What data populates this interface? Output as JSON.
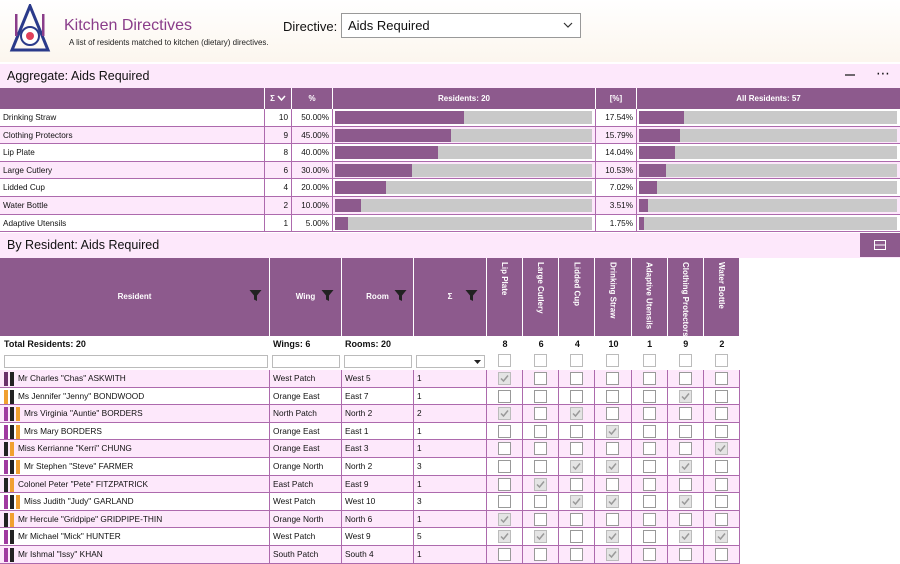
{
  "app": {
    "title": "Kitchen Directives",
    "subtitle": "A list of residents matched to kitchen (dietary) directives."
  },
  "directive": {
    "label": "Directive:",
    "value": "Aids Required"
  },
  "aggregate": {
    "title": "Aggregate: Aids Required",
    "headers": {
      "sum": "Σ",
      "pct": "%",
      "residents": "Residents: 20",
      "pct_all": "[%]",
      "all_residents": "All Residents: 57"
    },
    "rows": [
      {
        "name": "Drinking Straw",
        "n": "10",
        "pct": "50.00%",
        "frac": 0.5,
        "pct_all": "17.54%",
        "frac_all": 0.1754
      },
      {
        "name": "Clothing Protectors",
        "n": "9",
        "pct": "45.00%",
        "frac": 0.45,
        "pct_all": "15.79%",
        "frac_all": 0.1579
      },
      {
        "name": "Lip Plate",
        "n": "8",
        "pct": "40.00%",
        "frac": 0.4,
        "pct_all": "14.04%",
        "frac_all": 0.1404
      },
      {
        "name": "Large Cutlery",
        "n": "6",
        "pct": "30.00%",
        "frac": 0.3,
        "pct_all": "10.53%",
        "frac_all": 0.1053
      },
      {
        "name": "Lidded Cup",
        "n": "4",
        "pct": "20.00%",
        "frac": 0.2,
        "pct_all": "7.02%",
        "frac_all": 0.0702
      },
      {
        "name": "Water Bottle",
        "n": "2",
        "pct": "10.00%",
        "frac": 0.1,
        "pct_all": "3.51%",
        "frac_all": 0.0351
      },
      {
        "name": "Adaptive Utensils",
        "n": "1",
        "pct": "5.00%",
        "frac": 0.05,
        "pct_all": "1.75%",
        "frac_all": 0.0175
      }
    ]
  },
  "by_resident": {
    "title": "By Resident: Aids Required",
    "headers": {
      "resident": "Resident",
      "wing": "Wing",
      "room": "Room",
      "sum": "Σ"
    },
    "aid_columns": [
      "Lip Plate",
      "Large Cutlery",
      "Lidded Cup",
      "Drinking Straw",
      "Adaptive Utensils",
      "Clothing Protectors",
      "Water Bottle"
    ],
    "totals": {
      "residents": "Total Residents: 20",
      "wings": "Wings: 6",
      "rooms": "Rooms: 20",
      "aid_counts": [
        "8",
        "6",
        "4",
        "10",
        "1",
        "9",
        "2"
      ]
    },
    "rows": [
      {
        "name": "Mr Charles \"Chas\" ASKWITH",
        "wing": "West Patch",
        "room": "West  5",
        "sum": "1",
        "tags": [
          "#6a2f6a",
          "#222"
        ],
        "aids": [
          1,
          0,
          0,
          0,
          0,
          0,
          0
        ]
      },
      {
        "name": "Ms Jennifer \"Jenny\" BONDWOOD",
        "wing": "Orange East",
        "room": "East  7",
        "sum": "1",
        "tags": [
          "#f0a030",
          "#222"
        ],
        "aids": [
          0,
          0,
          0,
          0,
          0,
          1,
          0
        ]
      },
      {
        "name": "Mrs Virginia \"Auntie\" BORDERS",
        "wing": "North Patch",
        "room": "North  2",
        "sum": "2",
        "tags": [
          "#a03aa0",
          "#222",
          "#f0a030"
        ],
        "aids": [
          1,
          0,
          1,
          0,
          0,
          0,
          0
        ]
      },
      {
        "name": "Mrs Mary BORDERS",
        "wing": "Orange East",
        "room": "East  1",
        "sum": "1",
        "tags": [
          "#a03aa0",
          "#222",
          "#f0a030"
        ],
        "aids": [
          0,
          0,
          0,
          1,
          0,
          0,
          0
        ]
      },
      {
        "name": "Miss Kerrianne \"Kerri\" CHUNG",
        "wing": "Orange East",
        "room": "East  3",
        "sum": "1",
        "tags": [
          "#222",
          "#f0a030"
        ],
        "aids": [
          0,
          0,
          0,
          0,
          0,
          0,
          1
        ]
      },
      {
        "name": "Mr Stephen \"Steve\" FARMER",
        "wing": "Orange North",
        "room": "North  2",
        "sum": "3",
        "tags": [
          "#a03aa0",
          "#222",
          "#f0a030"
        ],
        "aids": [
          0,
          0,
          1,
          1,
          0,
          1,
          0
        ]
      },
      {
        "name": "Colonel Peter \"Pete\" FITZPATRICK",
        "wing": "East Patch",
        "room": "East  9",
        "sum": "1",
        "tags": [
          "#222",
          "#f0a030"
        ],
        "aids": [
          0,
          1,
          0,
          0,
          0,
          0,
          0
        ]
      },
      {
        "name": "Miss Judith \"Judy\" GARLAND",
        "wing": "West Patch",
        "room": "West 10",
        "sum": "3",
        "tags": [
          "#a03aa0",
          "#222",
          "#f0a030"
        ],
        "aids": [
          0,
          0,
          1,
          1,
          0,
          1,
          0
        ]
      },
      {
        "name": "Mr Hercule \"Gridpipe\" GRIDPIPE-THIN",
        "wing": "Orange North",
        "room": "North  6",
        "sum": "1",
        "tags": [
          "#222",
          "#f0a030"
        ],
        "aids": [
          1,
          0,
          0,
          0,
          0,
          0,
          0
        ]
      },
      {
        "name": "Mr Michael \"Mick\" HUNTER",
        "wing": "West Patch",
        "room": "West  9",
        "sum": "5",
        "tags": [
          "#a03aa0",
          "#222"
        ],
        "aids": [
          1,
          1,
          0,
          1,
          0,
          1,
          1
        ]
      },
      {
        "name": "Mr Ishmal \"Issy\" KHAN",
        "wing": "South Patch",
        "room": "South  4",
        "sum": "1",
        "tags": [
          "#a03aa0",
          "#222"
        ],
        "aids": [
          0,
          0,
          0,
          1,
          0,
          0,
          0
        ]
      }
    ]
  }
}
